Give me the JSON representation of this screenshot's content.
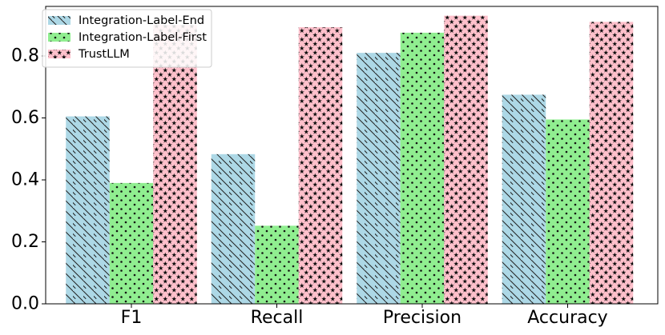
{
  "chart_data": {
    "type": "bar",
    "categories": [
      "F1",
      "Recall",
      "Precision",
      "Accuracy"
    ],
    "series": [
      {
        "name": "Integration-Label-End",
        "values": [
          0.605,
          0.483,
          0.81,
          0.675
        ],
        "color": "#add8e6",
        "pattern": "diagonal-hatch"
      },
      {
        "name": "Integration-Label-First",
        "values": [
          0.39,
          0.252,
          0.875,
          0.595
        ],
        "color": "#90ee90",
        "pattern": "dots"
      },
      {
        "name": "TrustLLM",
        "values": [
          0.9,
          0.893,
          0.93,
          0.91
        ],
        "color": "#ffc0cb",
        "pattern": "stars"
      }
    ],
    "yticks": [
      "0.0",
      "0.2",
      "0.4",
      "0.6",
      "0.8"
    ],
    "ylim": [
      0,
      0.96
    ],
    "title": "",
    "xlabel": "",
    "ylabel": "",
    "grid": false,
    "legend_position": "top-left"
  }
}
